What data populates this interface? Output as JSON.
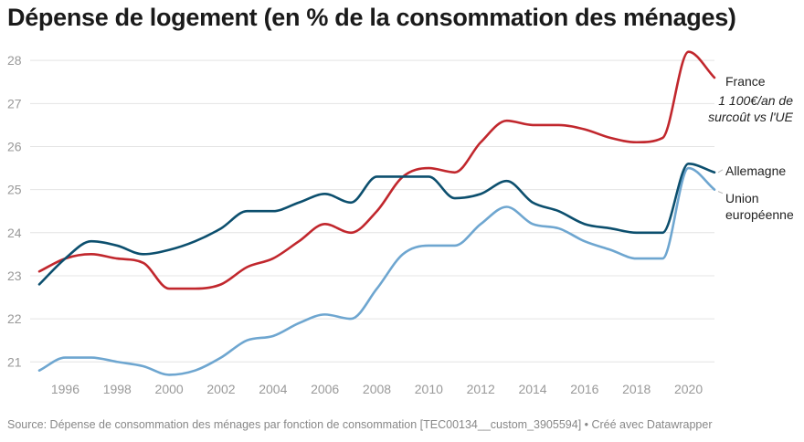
{
  "title": "Dépense de logement (en % de la consommation des ménages)",
  "source": "Source: Dépense de consommation des ménages par fonction de consommation [TEC00134__custom_3905594] • Créé avec Datawrapper",
  "chart_data": {
    "type": "line",
    "title": "Dépense de logement (en % de la consommation des ménages)",
    "x": [
      1995,
      1996,
      1997,
      1998,
      1999,
      2000,
      2001,
      2002,
      2003,
      2004,
      2005,
      2006,
      2007,
      2008,
      2009,
      2010,
      2011,
      2012,
      2013,
      2014,
      2015,
      2016,
      2017,
      2018,
      2019,
      2020,
      2021
    ],
    "xticks": [
      1996,
      1998,
      2000,
      2002,
      2004,
      2006,
      2008,
      2010,
      2012,
      2014,
      2016,
      2018,
      2020
    ],
    "yticks": [
      21,
      22,
      23,
      24,
      25,
      26,
      27,
      28
    ],
    "xlim": [
      1995,
      2021
    ],
    "ylim": [
      20.7,
      28.4
    ],
    "grid": true,
    "series": [
      {
        "name": "France",
        "color": "#c1272d",
        "values": [
          23.1,
          23.4,
          23.5,
          23.4,
          23.3,
          22.7,
          22.7,
          22.8,
          23.2,
          23.4,
          23.8,
          24.2,
          24.0,
          24.5,
          25.3,
          25.5,
          25.4,
          26.1,
          26.6,
          26.5,
          26.5,
          26.4,
          26.2,
          26.1,
          26.2,
          28.2,
          27.6
        ]
      },
      {
        "name": "Allemagne",
        "color": "#0c4f6e",
        "values": [
          22.8,
          23.4,
          23.8,
          23.7,
          23.5,
          23.6,
          23.8,
          24.1,
          24.5,
          24.5,
          24.7,
          24.9,
          24.7,
          25.3,
          25.3,
          25.3,
          24.8,
          24.9,
          25.2,
          24.7,
          24.5,
          24.2,
          24.1,
          24.0,
          24.0,
          25.6,
          25.4
        ]
      },
      {
        "name": "Union européenne",
        "name_lines": [
          "Union",
          "européenne"
        ],
        "color": "#6ea6d0",
        "values": [
          20.8,
          21.1,
          21.1,
          21.0,
          20.9,
          20.7,
          20.8,
          21.1,
          21.5,
          21.6,
          21.9,
          22.1,
          22.0,
          22.7,
          23.5,
          23.7,
          23.7,
          24.2,
          24.6,
          24.2,
          24.1,
          23.8,
          23.6,
          23.4,
          23.4,
          25.5,
          25.0
        ]
      }
    ],
    "annotation": {
      "lines": [
        "1 100€/an de",
        "surcoût vs l'UE"
      ]
    }
  }
}
